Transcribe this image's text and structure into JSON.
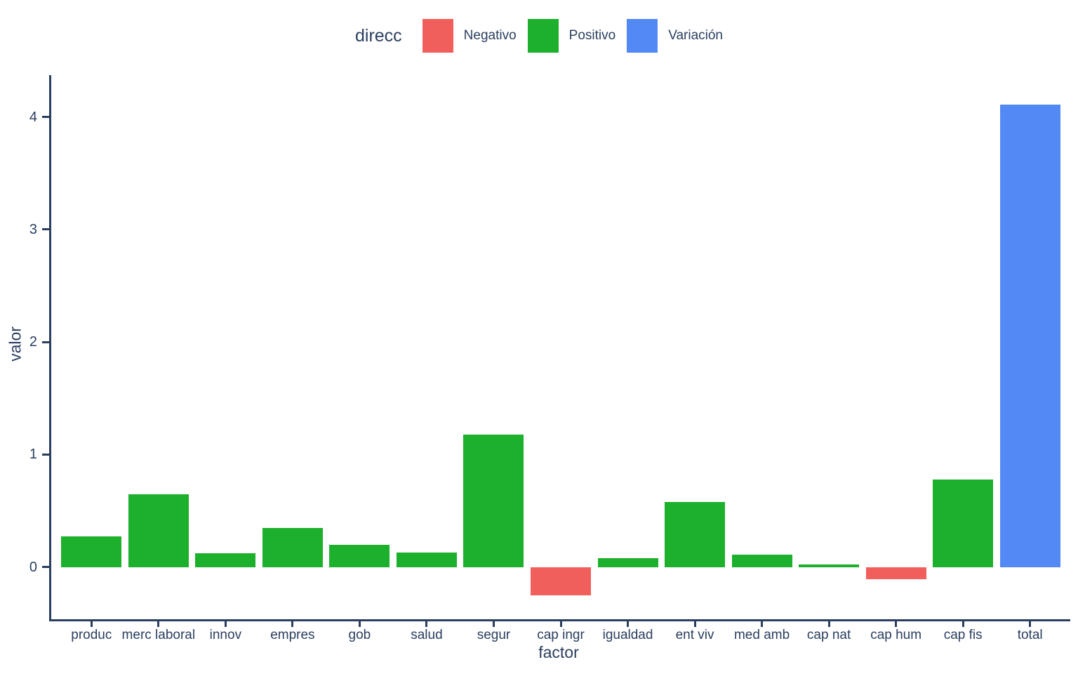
{
  "legend": {
    "title": "direcc",
    "items": [
      {
        "label": "Negativo",
        "color": "#F15F5C"
      },
      {
        "label": "Positivo",
        "color": "#1DB02C"
      },
      {
        "label": "Variación",
        "color": "#5289F5"
      }
    ]
  },
  "chart_data": {
    "type": "bar",
    "title": "",
    "xlabel": "factor",
    "ylabel": "valor",
    "categories": [
      "produc",
      "merc laboral",
      "innov",
      "empres",
      "gob",
      "salud",
      "segur",
      "cap ingr",
      "igualdad",
      "ent viv",
      "med amb",
      "cap nat",
      "cap hum",
      "cap fis",
      "total"
    ],
    "values": [
      0.27,
      0.65,
      0.12,
      0.35,
      0.2,
      0.13,
      1.18,
      -0.25,
      0.08,
      0.58,
      0.11,
      0.02,
      -0.11,
      0.78,
      4.11
    ],
    "direction": [
      "Positivo",
      "Positivo",
      "Positivo",
      "Positivo",
      "Positivo",
      "Positivo",
      "Positivo",
      "Negativo",
      "Positivo",
      "Positivo",
      "Positivo",
      "Positivo",
      "Negativo",
      "Positivo",
      "Variación"
    ],
    "colors": {
      "Negativo": "#F15F5C",
      "Positivo": "#1DB02C",
      "Variación": "#5289F5"
    },
    "y_ticks": [
      0,
      1,
      2,
      3,
      4
    ],
    "ylim": [
      -0.46,
      4.37
    ],
    "grid": false,
    "legend_position": "top"
  },
  "style": {
    "text_color": "#2A3F5F",
    "axis_color": "#2A3F5F",
    "background": "#FFFFFF"
  }
}
